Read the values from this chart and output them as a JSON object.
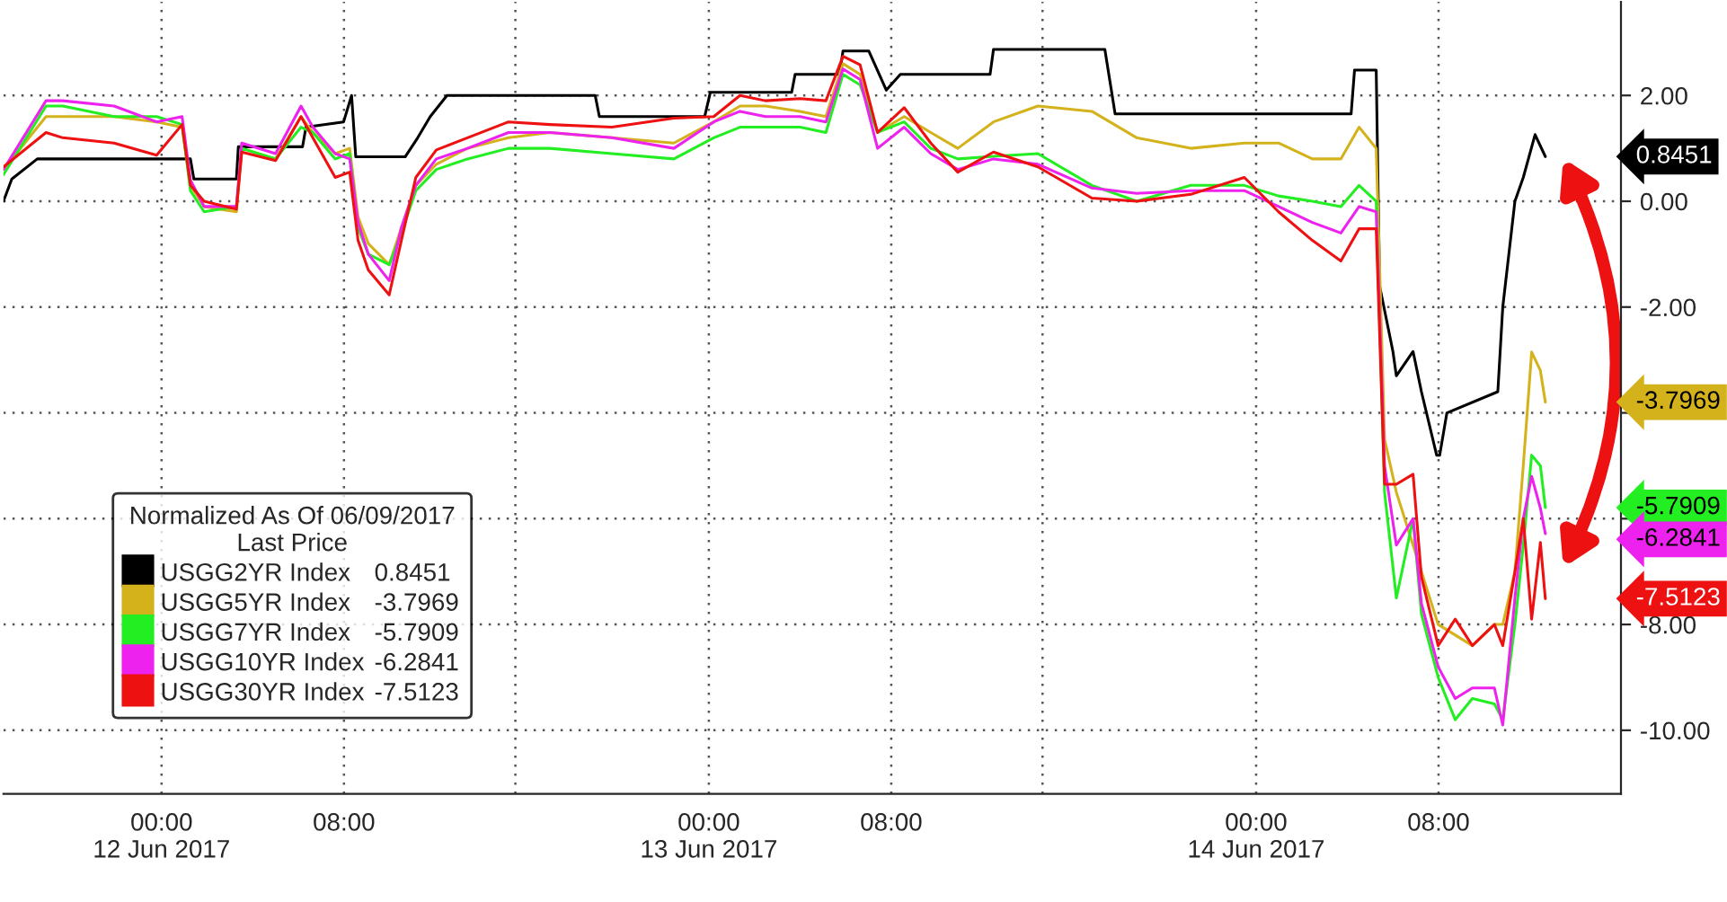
{
  "chart_data": {
    "type": "line",
    "legend_title": "Normalized As Of 06/09/2017\nLast Price",
    "legend": "bottom left",
    "annotations": [
      "0.8451",
      "-3.7969",
      "-5.7909",
      "-6.2841",
      "-7.5123"
    ],
    "grid": true,
    "xlim": [
      "2017-06-11T17:04",
      "2017-06-14T16:00"
    ],
    "ylim": [
      -11.2,
      3.77
    ],
    "xticks": [
      {
        "value": "2017-06-12T00:00",
        "label": "00:00\n12 Jun 2017"
      },
      {
        "value": "2017-06-12T08:00",
        "label": "08:00"
      },
      {
        "value": "2017-06-12T15:31",
        "label": null
      },
      {
        "value": "2017-06-13T00:00",
        "label": "00:00\n13 Jun 2017"
      },
      {
        "value": "2017-06-13T08:00",
        "label": "08:00"
      },
      {
        "value": "2017-06-13T14:38",
        "label": null
      },
      {
        "value": "2017-06-14T00:00",
        "label": "00:00\n14 Jun 2017"
      },
      {
        "value": "2017-06-14T08:00",
        "label": "08:00"
      }
    ],
    "yticks": [
      {
        "value": 2,
        "label": "2.00"
      },
      {
        "value": 0,
        "label": "0.00"
      },
      {
        "value": -2,
        "label": "-2.00"
      },
      {
        "value": -4,
        "label": null
      },
      {
        "value": -6,
        "label": null
      },
      {
        "value": -8,
        "label": "-8.00"
      },
      {
        "value": -10,
        "label": "-10.00"
      }
    ],
    "series": [
      {
        "name": "USGG2YR Index",
        "color": "#000000",
        "x": [
          "2017-06-11T17:04",
          "2017-06-11T17:26",
          "2017-06-11T18:33",
          "2017-06-12T01:16",
          "2017-06-12T01:25",
          "2017-06-12T03:17",
          "2017-06-12T03:22",
          "2017-06-12T06:11",
          "2017-06-12T06:20",
          "2017-06-12T07:59",
          "2017-06-12T08:20",
          "2017-06-12T08:31",
          "2017-06-12T10:41",
          "2017-06-12T11:14",
          "2017-06-12T11:47",
          "2017-06-12T12:31",
          "2017-06-12T19:01",
          "2017-06-12T19:12",
          "2017-06-12T23:49",
          "2017-06-13T00:04",
          "2017-06-13T03:38",
          "2017-06-13T03:47",
          "2017-06-13T05:44",
          "2017-06-13T05:53",
          "2017-06-13T07:01",
          "2017-06-13T07:47",
          "2017-06-13T08:24",
          "2017-06-13T12:20",
          "2017-06-13T12:29",
          "2017-06-13T17:22",
          "2017-06-13T17:40",
          "2017-06-13T17:49",
          "2017-06-14T04:10",
          "2017-06-14T04:19",
          "2017-06-14T05:16",
          "2017-06-14T05:25",
          "2017-06-14T06:00",
          "2017-06-14T06:09",
          "2017-06-14T06:53",
          "2017-06-14T07:15",
          "2017-06-14T07:55",
          "2017-06-14T08:03",
          "2017-06-14T08:22",
          "2017-06-14T10:36",
          "2017-06-14T10:49",
          "2017-06-14T11:21",
          "2017-06-14T11:43",
          "2017-06-14T12:14",
          "2017-06-14T12:41"
        ],
        "values": [
          0,
          0.42,
          0.8,
          0.8,
          0.42,
          0.42,
          1.03,
          1.03,
          1.4,
          1.5,
          2.0,
          0.84,
          0.84,
          1.2,
          1.6,
          2.0,
          2.0,
          1.6,
          1.6,
          2.06,
          2.06,
          2.4,
          2.4,
          2.84,
          2.84,
          2.1,
          2.4,
          2.4,
          2.87,
          2.87,
          2.06,
          1.65,
          1.65,
          2.48,
          2.48,
          -1.6,
          -2.84,
          -3.3,
          -2.84,
          -3.6,
          -4.8,
          -4.8,
          -4.0,
          -3.6,
          -2.0,
          0.0,
          0.45,
          1.26,
          0.8451
        ]
      },
      {
        "name": "USGG5YR Index",
        "color": "#d4b21c",
        "values": [
          0.6,
          1.6,
          1.6,
          1.6,
          1.5,
          1.4,
          0.3,
          -0.1,
          -0.2,
          1.0,
          0.8,
          1.6,
          1.3,
          0.9,
          1.0,
          -0.3,
          -0.8,
          -1.2,
          -0.5,
          0.3,
          0.7,
          1.0,
          1.2,
          1.3,
          1.2,
          1.1,
          1.5,
          1.8,
          1.8,
          1.7,
          1.6,
          2.6,
          2.4,
          1.3,
          1.6,
          1.3,
          1.0,
          1.5,
          1.8,
          1.7,
          1.2,
          1.0,
          1.1,
          1.1,
          0.8,
          0.8,
          1.4,
          1.0,
          -4.5,
          -5.5,
          -6.5,
          -7.0,
          -8.0,
          -8.2,
          -8.4,
          -8.0,
          -8.0,
          -7.0,
          -5.0,
          -2.85,
          -3.2,
          -3.7969
        ]
      },
      {
        "name": "USGG7YR Index",
        "color": "#22ee22",
        "values": [
          0.5,
          1.8,
          1.8,
          1.6,
          1.6,
          1.45,
          0.2,
          -0.2,
          -0.1,
          1.0,
          0.8,
          1.4,
          1.3,
          0.8,
          0.9,
          -0.5,
          -1.0,
          -1.2,
          -0.6,
          0.2,
          0.6,
          0.8,
          1.0,
          1.0,
          0.9,
          0.8,
          1.2,
          1.4,
          1.4,
          1.4,
          1.3,
          2.4,
          2.2,
          1.3,
          1.5,
          1.0,
          0.8,
          0.85,
          0.9,
          0.3,
          0.0,
          0.3,
          0.3,
          0.1,
          0.0,
          -0.1,
          0.3,
          0.0,
          -5.5,
          -7.5,
          -6.0,
          -7.8,
          -9.0,
          -9.8,
          -9.4,
          -9.5,
          -9.8,
          -8.0,
          -6.5,
          -4.8,
          -5.0,
          -5.7909
        ]
      },
      {
        "name": "USGG10YR Index",
        "color": "#ee22ee",
        "values": [
          0.6,
          1.9,
          1.9,
          1.8,
          1.5,
          1.6,
          0.4,
          -0.1,
          -0.1,
          1.1,
          0.9,
          1.8,
          1.4,
          0.9,
          0.8,
          -0.4,
          -1.0,
          -1.5,
          -0.5,
          0.3,
          0.8,
          1.0,
          1.3,
          1.3,
          1.2,
          1.0,
          1.5,
          1.7,
          1.6,
          1.6,
          1.5,
          2.5,
          2.3,
          1.0,
          1.4,
          0.9,
          0.6,
          0.8,
          0.7,
          0.25,
          0.15,
          0.2,
          0.2,
          -0.1,
          -0.4,
          -0.6,
          -0.1,
          -0.2,
          -5.0,
          -6.5,
          -6.0,
          -7.6,
          -8.8,
          -9.4,
          -9.2,
          -9.2,
          -9.9,
          -7.5,
          -6.0,
          -5.2,
          -5.8,
          -6.2841
        ]
      },
      {
        "name": "USGG30YR Index",
        "color": "#ee1111",
        "values": [
          0.65,
          1.3,
          1.2,
          1.1,
          0.87,
          1.45,
          0.3,
          0,
          -0.15,
          0.93,
          0.77,
          1.6,
          1.2,
          0.45,
          0.55,
          -0.74,
          -1.3,
          -1.77,
          -0.74,
          0.45,
          0.97,
          1.2,
          1.5,
          1.45,
          1.4,
          1.57,
          1.6,
          2.0,
          1.9,
          1.94,
          1.9,
          2.74,
          2.58,
          1.3,
          1.77,
          1.1,
          0.55,
          0.93,
          0.65,
          0.06,
          0.0,
          0.13,
          0.45,
          -0.2,
          -0.74,
          -1.13,
          -0.52,
          -0.52,
          -5.35,
          -5.35,
          -5.16,
          -7.1,
          -8.4,
          -7.9,
          -8.4,
          -8.0,
          -8.4,
          -7.0,
          -6.0,
          -7.9,
          -6.45,
          -7.5123
        ]
      }
    ],
    "x": [
      "2017-06-11T17:04",
      "2017-06-11T18:56",
      "2017-06-11T19:40",
      "2017-06-11T21:55",
      "2017-06-11T23:47",
      "2017-06-12T00:54",
      "2017-06-12T01:16",
      "2017-06-12T01:52",
      "2017-06-12T03:17",
      "2017-06-12T03:31",
      "2017-06-12T05:00",
      "2017-06-12T06:07",
      "2017-06-12T06:38",
      "2017-06-12T07:37",
      "2017-06-12T08:15",
      "2017-06-12T08:37",
      "2017-06-12T09:04",
      "2017-06-12T09:59",
      "2017-06-12T10:31",
      "2017-06-12T11:09",
      "2017-06-12T12:03",
      "2017-06-12T13:25",
      "2017-06-12T15:13",
      "2017-06-12T17:02",
      "2017-06-12T19:45",
      "2017-06-12T22:28",
      "2017-06-13T00:13",
      "2017-06-13T01:22",
      "2017-06-13T02:29",
      "2017-06-13T04:00",
      "2017-06-13T05:08",
      "2017-06-13T05:53",
      "2017-06-13T06:38",
      "2017-06-13T07:24",
      "2017-06-13T08:34",
      "2017-06-13T09:44",
      "2017-06-13T10:55",
      "2017-06-13T12:29",
      "2017-06-13T14:26",
      "2017-06-13T16:48",
      "2017-06-13T18:46",
      "2017-06-13T21:08",
      "2017-06-13T23:29",
      "2017-06-14T00:59",
      "2017-06-14T02:28",
      "2017-06-14T03:43",
      "2017-06-14T04:31",
      "2017-06-14T05:16",
      "2017-06-14T05:38",
      "2017-06-14T06:09",
      "2017-06-14T06:53",
      "2017-06-14T07:15",
      "2017-06-14T07:59",
      "2017-06-14T08:44",
      "2017-06-14T09:29",
      "2017-06-14T10:27",
      "2017-06-14T10:49",
      "2017-06-14T11:21",
      "2017-06-14T11:43",
      "2017-06-14T12:05",
      "2017-06-14T12:28",
      "2017-06-14T12:41"
    ]
  }
}
